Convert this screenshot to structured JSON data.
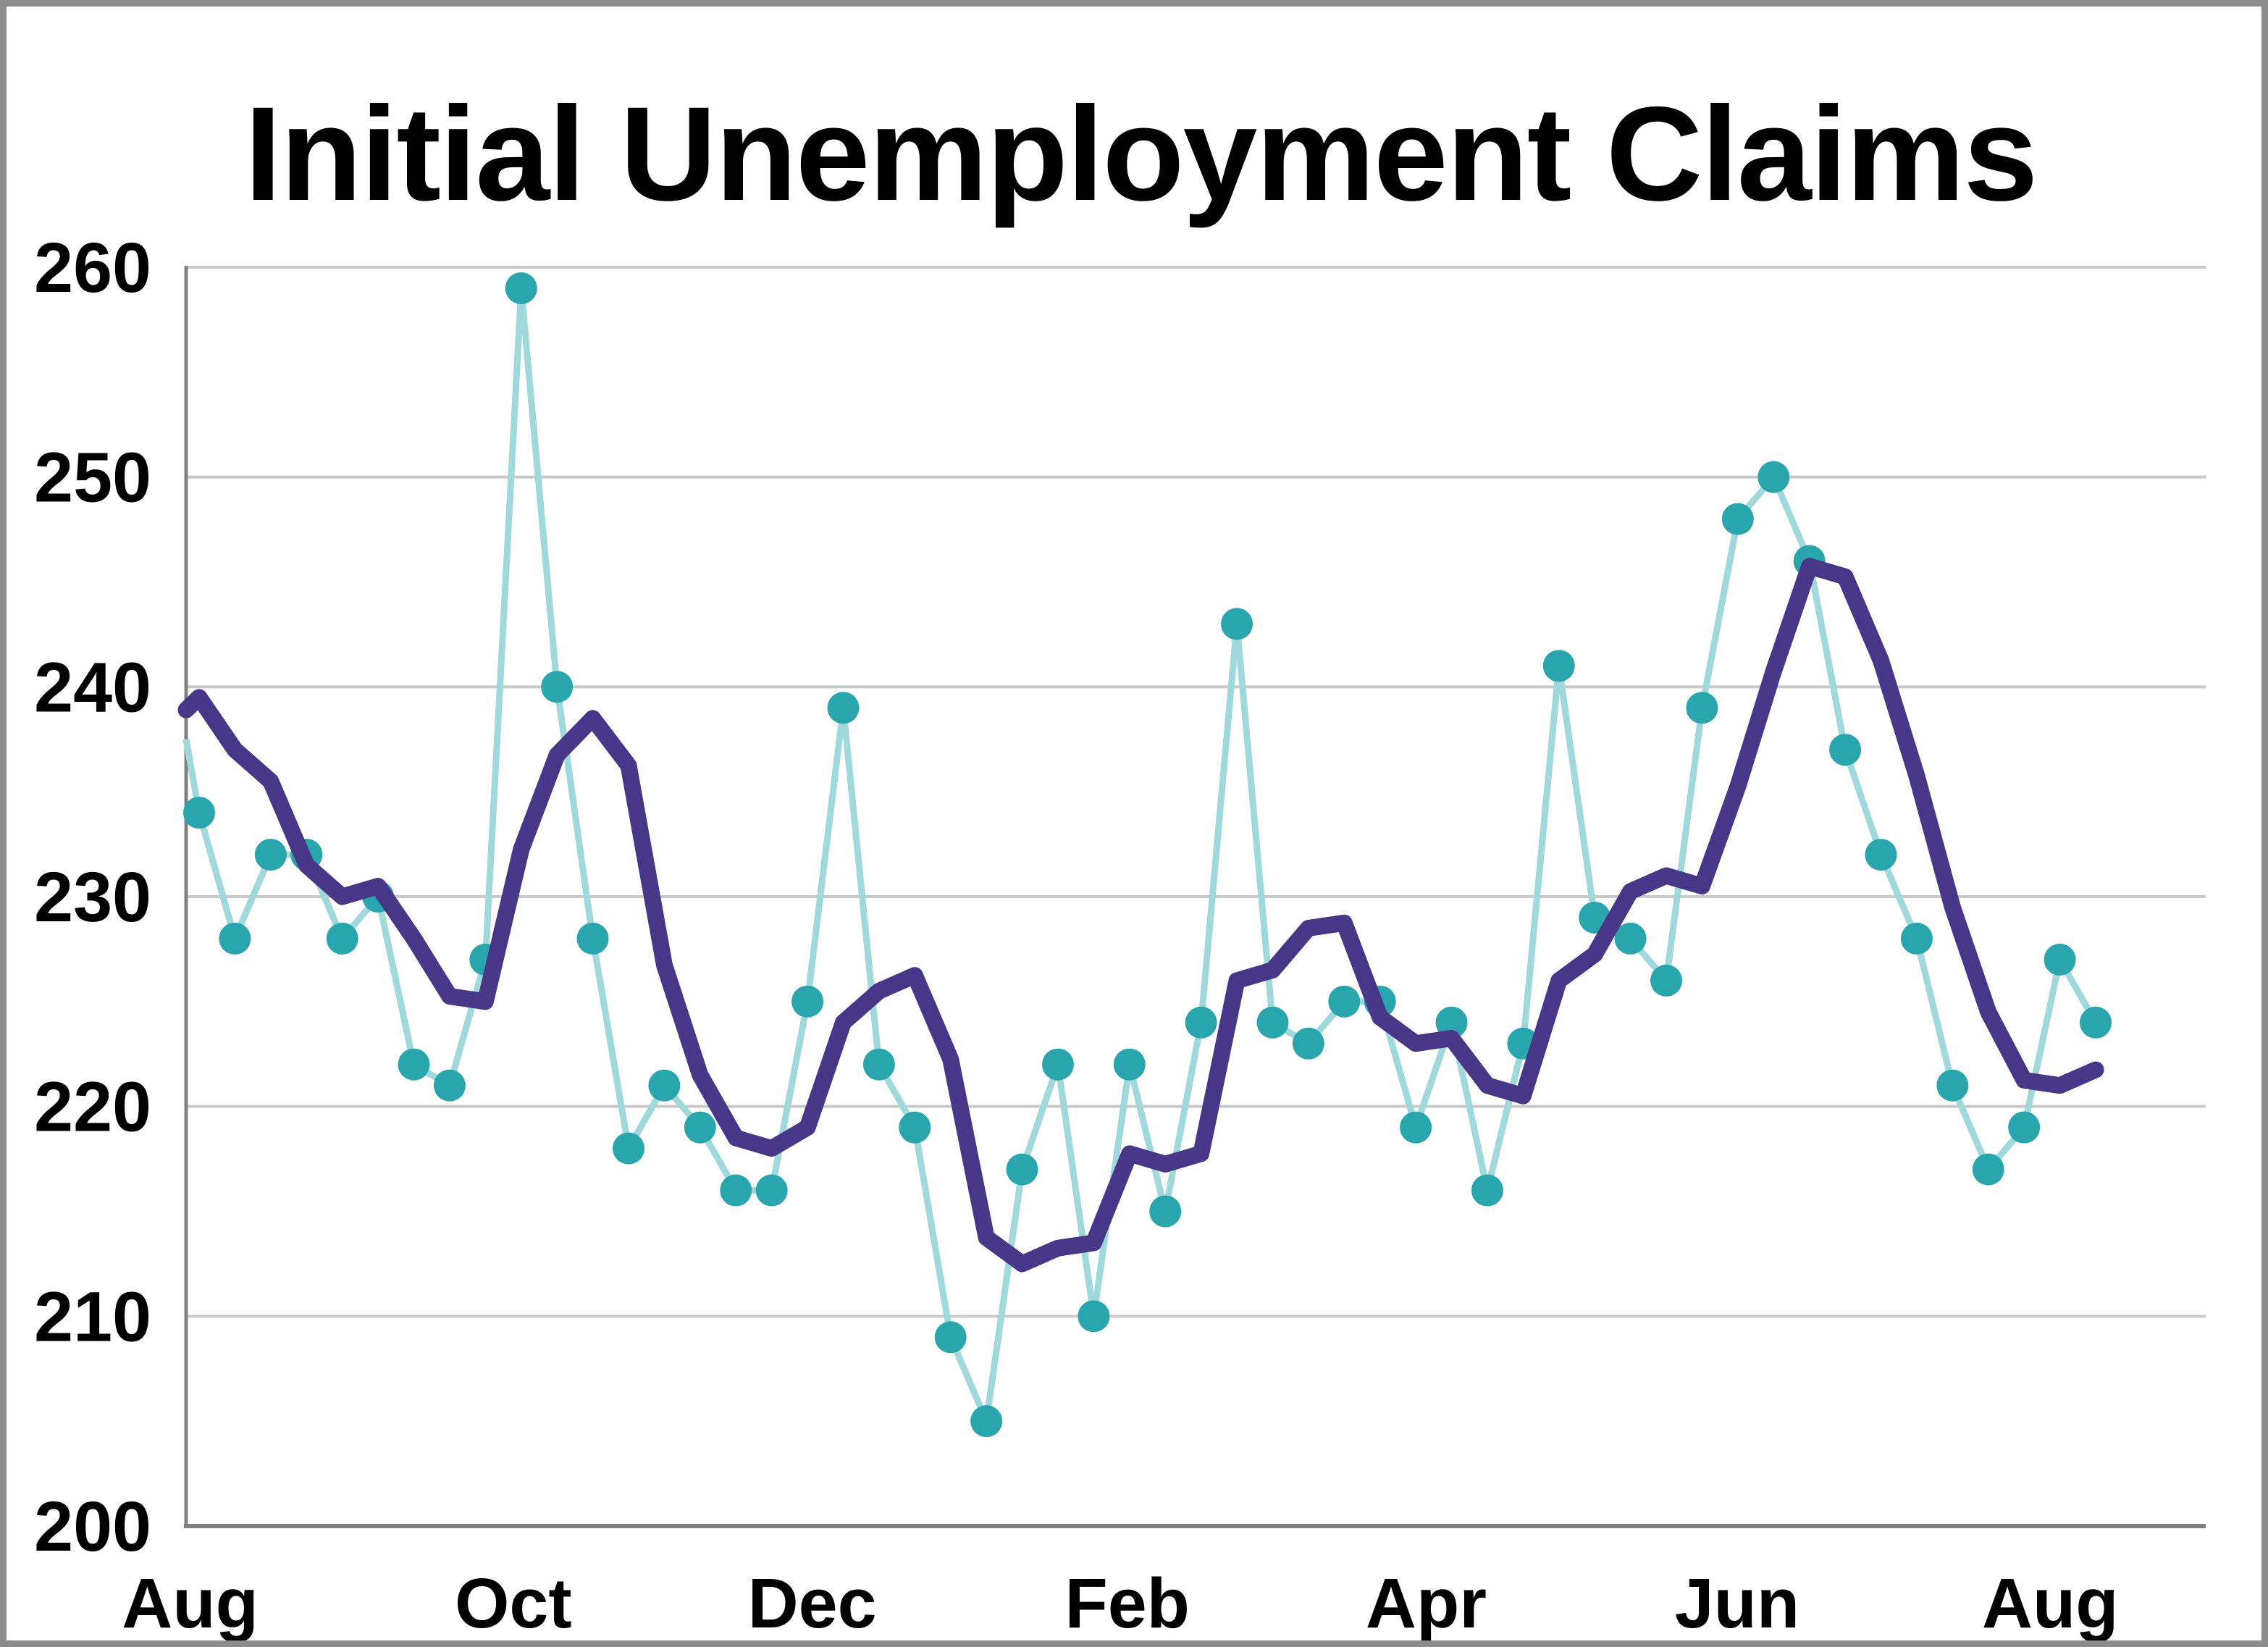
{
  "title": "Initial Unemployment Claims",
  "y_axis": {
    "ticks": [
      260,
      250,
      240,
      230,
      220,
      210,
      200
    ],
    "min": 200,
    "max": 260
  },
  "x_axis": {
    "labels": [
      {
        "label": "Aug",
        "pos": 0.002
      },
      {
        "label": "Oct",
        "pos": 0.162
      },
      {
        "label": "Dec",
        "pos": 0.31
      },
      {
        "label": "Feb",
        "pos": 0.466
      },
      {
        "label": "Apr",
        "pos": 0.614
      },
      {
        "label": "Jun",
        "pos": 0.768
      },
      {
        "label": "Aug",
        "pos": 0.923
      }
    ]
  },
  "chart_data": {
    "type": "line",
    "title": "Initial Unemployment Claims",
    "x_unit": "week",
    "x_range_months": [
      "Aug",
      "Aug"
    ],
    "ylim": [
      200,
      260
    ],
    "grid": "horizontal",
    "legend": "none",
    "series": [
      {
        "name": "weekly-initial-claims",
        "markers": true,
        "line_color": "#A0D9DC",
        "marker_color": "#29A5AE",
        "edge_start_value": 237.5,
        "values": [
          234,
          228,
          232,
          232,
          228,
          230,
          222,
          221,
          227,
          259,
          240,
          228,
          218,
          221,
          219,
          216,
          216,
          225,
          239,
          222,
          219,
          209,
          205,
          217,
          222,
          210,
          222,
          215,
          224,
          243,
          224,
          223,
          225,
          225,
          219,
          224,
          216,
          223,
          241,
          229,
          228,
          226,
          239,
          248,
          250,
          246,
          237,
          232,
          228,
          221,
          217,
          219,
          227,
          224
        ]
      },
      {
        "name": "4-week-moving-average",
        "markers": false,
        "line_color": "#483789",
        "edge_start_value": 238.9,
        "values": [
          239.5,
          237,
          235.5,
          231.5,
          230,
          230.5,
          228,
          225.25,
          225,
          232.25,
          236.75,
          238.5,
          236.25,
          226.75,
          221.5,
          218.5,
          218,
          219,
          224,
          225.5,
          226.25,
          222.25,
          213.75,
          212.5,
          213.25,
          213.5,
          217.75,
          217.25,
          217.75,
          226,
          226.5,
          228.5,
          228.75,
          224.25,
          223,
          223.25,
          221,
          220.5,
          226,
          227.25,
          230.25,
          231,
          230.5,
          235.25,
          240.75,
          245.75,
          245.25,
          241.25,
          235.75,
          229.5,
          224.5,
          221.25,
          221,
          221.75
        ]
      }
    ]
  },
  "colors": {
    "background": "#FFFFFF",
    "frame": "#8C8C8C",
    "gridline": "#C9C9C9",
    "axis": "#808080",
    "text": "#000000"
  }
}
